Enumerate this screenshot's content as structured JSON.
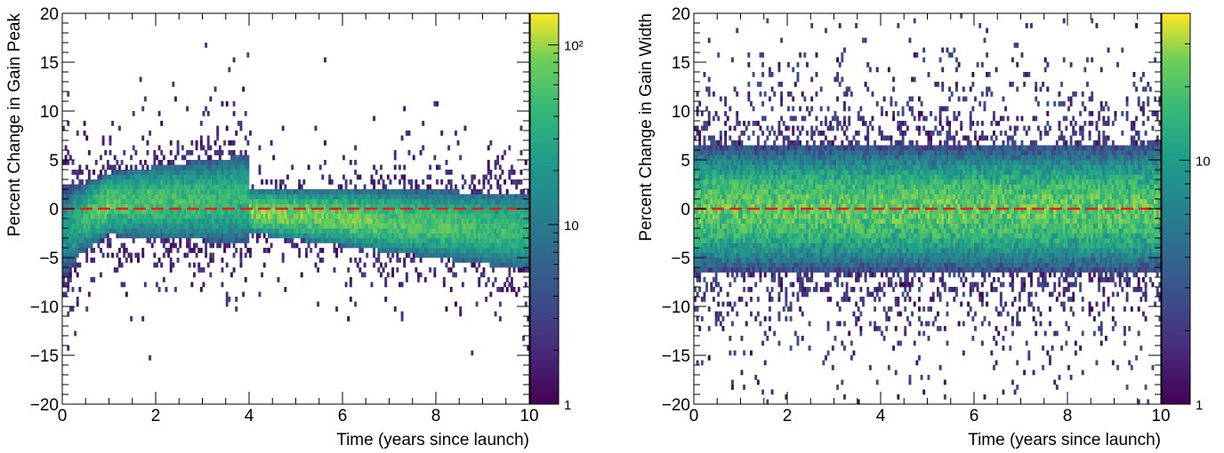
{
  "chart_data": [
    {
      "type": "heatmap",
      "title": "",
      "xlabel": "Time (years since launch)",
      "ylabel": "Percent Change in Gain Peak",
      "xlim": [
        0,
        10
      ],
      "ylim": [
        -20,
        20
      ],
      "x_ticks": [
        0,
        2,
        4,
        6,
        8,
        10
      ],
      "y_ticks": [
        -20,
        -15,
        -10,
        -5,
        0,
        5,
        10,
        15,
        20
      ],
      "x_tick_labels": [
        "0",
        "2",
        "4",
        "6",
        "8",
        "10"
      ],
      "y_tick_labels": [
        "−20",
        "−15",
        "−10",
        "−5",
        "0",
        "5",
        "10",
        "15",
        "20"
      ],
      "colorbar": {
        "scale": "log",
        "range": [
          1,
          150
        ],
        "ticks": [
          1,
          10,
          100
        ],
        "tick_labels": [
          "1",
          "10",
          "10²"
        ]
      },
      "reference_line": {
        "y": 0,
        "color": "#e8211b",
        "style": "dashed"
      },
      "density_model": {
        "description": "estimated core of distribution per time segment",
        "segments": [
          {
            "x": [
              0.0,
              0.4
            ],
            "center": [
              -2.5,
              -1.0
            ],
            "half_width": [
              5.0,
              3.5
            ],
            "peak_count": [
              15,
              40
            ]
          },
          {
            "x": [
              0.4,
              1.0
            ],
            "center": [
              -1.0,
              0.5
            ],
            "half_width": [
              3.5,
              3.0
            ],
            "peak_count": [
              40,
              80
            ]
          },
          {
            "x": [
              1.0,
              4.0
            ],
            "center": [
              0.5,
              1.0
            ],
            "half_width": [
              3.2,
              4.5
            ],
            "peak_count": [
              60,
              40
            ]
          },
          {
            "x": [
              4.0,
              10.0
            ],
            "center": [
              -0.3,
              -2.3
            ],
            "half_width": [
              2.2,
              4.0
            ],
            "peak_count": [
              90,
              40
            ]
          }
        ]
      }
    },
    {
      "type": "heatmap",
      "title": "",
      "xlabel": "Time (years since launch)",
      "ylabel": "Percent Change in Gain Width",
      "xlim": [
        0,
        10
      ],
      "ylim": [
        -20,
        20
      ],
      "x_ticks": [
        0,
        2,
        4,
        6,
        8,
        10
      ],
      "y_ticks": [
        -20,
        -15,
        -10,
        -5,
        0,
        5,
        10,
        15,
        20
      ],
      "x_tick_labels": [
        "0",
        "2",
        "4",
        "6",
        "8",
        "10"
      ],
      "y_tick_labels": [
        "−20",
        "−15",
        "−10",
        "−5",
        "0",
        "5",
        "10",
        "15",
        "20"
      ],
      "colorbar": {
        "scale": "log",
        "range": [
          1,
          40
        ],
        "ticks": [
          1,
          10
        ],
        "tick_labels": [
          "1",
          "10"
        ]
      },
      "reference_line": {
        "y": 0,
        "color": "#e8211b",
        "style": "dashed"
      },
      "density_model": {
        "description": "estimated core of distribution per time segment",
        "segments": [
          {
            "x": [
              0.0,
              10.0
            ],
            "center": [
              0.0,
              0.0
            ],
            "half_width": [
              6.5,
              6.5
            ],
            "peak_count": [
              22,
              22
            ]
          }
        ]
      }
    }
  ]
}
